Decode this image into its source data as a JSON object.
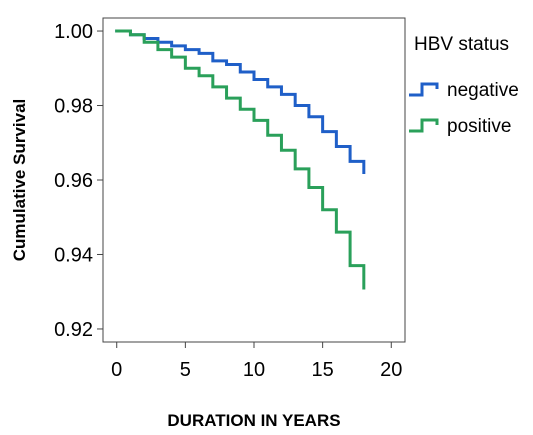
{
  "chart_data": {
    "type": "line",
    "title": "",
    "xlabel": "DURATION IN YEARS",
    "ylabel": "Cumulative Survival",
    "xlim": [
      -1,
      21
    ],
    "ylim": [
      0.9165,
      1.0035
    ],
    "x_ticks": [
      0,
      5,
      10,
      15,
      20
    ],
    "x_tick_labels": [
      "0",
      "5",
      "10",
      "15",
      "20"
    ],
    "y_ticks": [
      0.92,
      0.94,
      0.96,
      0.98,
      1.0
    ],
    "y_tick_labels": [
      "0.92",
      "0.94",
      "0.96",
      "0.98",
      "1.00"
    ],
    "grid": false,
    "step": true,
    "legend": {
      "title": "HBV status",
      "position": "right"
    },
    "series": [
      {
        "name": "negative",
        "color": "#1f5fc8",
        "x": [
          0,
          1,
          2,
          3,
          4,
          5,
          6,
          7,
          8,
          9,
          10,
          11,
          12,
          13,
          14,
          15,
          16,
          17,
          18
        ],
        "y": [
          1.0,
          0.999,
          0.998,
          0.997,
          0.996,
          0.995,
          0.994,
          0.992,
          0.991,
          0.989,
          0.987,
          0.985,
          0.983,
          0.98,
          0.977,
          0.973,
          0.969,
          0.965,
          0.962
        ]
      },
      {
        "name": "positive",
        "color": "#2aa05a",
        "x": [
          0,
          1,
          2,
          3,
          4,
          5,
          6,
          7,
          8,
          9,
          10,
          11,
          12,
          13,
          14,
          15,
          16,
          17,
          18
        ],
        "y": [
          1.0,
          0.999,
          0.997,
          0.995,
          0.993,
          0.99,
          0.988,
          0.985,
          0.982,
          0.979,
          0.976,
          0.972,
          0.968,
          0.963,
          0.958,
          0.952,
          0.946,
          0.937,
          0.931
        ]
      }
    ]
  }
}
